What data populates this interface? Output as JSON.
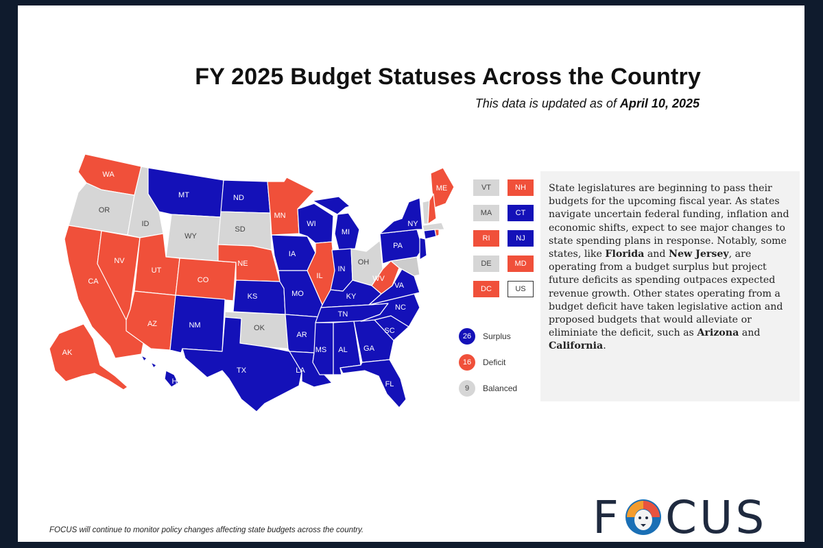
{
  "title": "FY 2025 Budget Statuses Across the Country",
  "subtitle_prefix": "This data is updated as of ",
  "subtitle_date": "April 10, 2025",
  "colors": {
    "surplus": "#1411b8",
    "deficit": "#f0503a",
    "balanced": "#d6d6d6",
    "background": "#0f1b2d"
  },
  "states": {
    "WA": "deficit",
    "OR": "balanced",
    "CA": "deficit",
    "NV": "deficit",
    "ID": "balanced",
    "MT": "surplus",
    "WY": "balanced",
    "UT": "deficit",
    "AZ": "deficit",
    "CO": "deficit",
    "NM": "surplus",
    "ND": "surplus",
    "SD": "balanced",
    "NE": "deficit",
    "KS": "surplus",
    "OK": "balanced",
    "TX": "surplus",
    "MN": "deficit",
    "IA": "surplus",
    "MO": "surplus",
    "AR": "surplus",
    "LA": "surplus",
    "WI": "surplus",
    "IL": "deficit",
    "MI": "surplus",
    "IN": "surplus",
    "OH": "balanced",
    "KY": "surplus",
    "TN": "surplus",
    "MS": "surplus",
    "AL": "surplus",
    "GA": "surplus",
    "FL": "surplus",
    "SC": "surplus",
    "NC": "surplus",
    "VA": "surplus",
    "WV": "deficit",
    "PA": "surplus",
    "NY": "surplus",
    "ME": "deficit",
    "AK": "deficit",
    "HI": "surplus"
  },
  "northeast_tiles": [
    {
      "code": "VT",
      "status": "balanced"
    },
    {
      "code": "NH",
      "status": "deficit"
    },
    {
      "code": "MA",
      "status": "balanced"
    },
    {
      "code": "CT",
      "status": "surplus"
    },
    {
      "code": "RI",
      "status": "deficit"
    },
    {
      "code": "NJ",
      "status": "surplus"
    },
    {
      "code": "DE",
      "status": "balanced"
    },
    {
      "code": "MD",
      "status": "deficit"
    },
    {
      "code": "DC",
      "status": "deficit"
    },
    {
      "code": "US",
      "status": "none"
    }
  ],
  "legend": [
    {
      "count": "26",
      "label": "Surplus",
      "status": "surplus"
    },
    {
      "count": "16",
      "label": "Deficit",
      "status": "deficit"
    },
    {
      "count": "9",
      "label": "Balanced",
      "status": "balanced"
    }
  ],
  "description": {
    "p1": "State legislatures are beginning to pass their budgets for the upcoming fiscal year. As states navigate uncertain federal funding, inflation and economic shifts, expect to see major changes to state spending plans in response. Notably, some states, like ",
    "b1": "Florida",
    "p2": " and ",
    "b2": "New Jersey",
    "p3": ", are operating from a budget surplus but project future deficits as spending outpaces expected revenue growth. Other states operating from a budget deficit have taken legislative action and proposed budgets that would alleviate or eliminiate the deficit, such as ",
    "b3": "Arizona",
    "p4": " and ",
    "b4": "California",
    "p5": "."
  },
  "footer": "FOCUS will continue to monitor policy changes affecting state budgets across the country.",
  "logo": {
    "left": "F",
    "right": "CUS",
    "icon": "lion-icon"
  }
}
